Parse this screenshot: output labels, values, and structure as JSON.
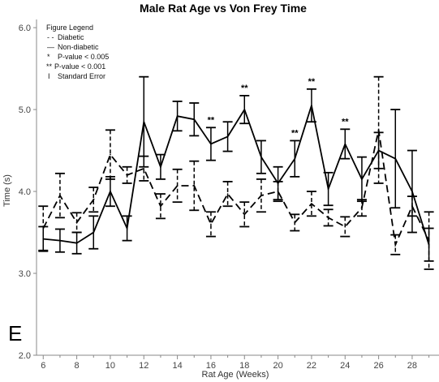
{
  "chart_data": {
    "type": "line",
    "title": "Male Rat Age vs Von Frey Time",
    "xlabel": "Rat Age (Weeks)",
    "ylabel": "Time (s)",
    "xlim": [
      5.6,
      29.6
    ],
    "ylim": [
      2.0,
      6.1
    ],
    "xticks": [
      "6",
      "8",
      "10",
      "12",
      "14",
      "16",
      "18",
      "20",
      "22",
      "24",
      "26",
      "28"
    ],
    "yticks": [
      "2.0",
      "3.0",
      "4.0",
      "5.0",
      "6.0"
    ],
    "grid": false,
    "legend_position": "top-left",
    "legend": {
      "title": "Figure Legend",
      "items": [
        {
          "symbol": "- -",
          "label": "Diabetic"
        },
        {
          "symbol": "—",
          "label": "Non-diabetic"
        },
        {
          "symbol": "*",
          "label": "P-value < 0.005"
        },
        {
          "symbol": "**",
          "label": "P-value < 0.001"
        },
        {
          "symbol": "I",
          "label": "Standard Error"
        }
      ]
    },
    "x": [
      6,
      7,
      8,
      9,
      10,
      11,
      12,
      13,
      14,
      15,
      16,
      17,
      18,
      19,
      20,
      21,
      22,
      23,
      24,
      25,
      26,
      27,
      28,
      29
    ],
    "series": [
      {
        "name": "Non-diabetic",
        "style": "solid",
        "values": [
          3.42,
          3.4,
          3.37,
          3.5,
          4.0,
          3.55,
          4.85,
          4.3,
          4.92,
          4.88,
          4.58,
          4.67,
          5.0,
          4.42,
          4.1,
          4.4,
          5.05,
          4.03,
          4.58,
          4.15,
          4.5,
          4.4,
          4.0,
          3.35
        ],
        "errors": [
          0.15,
          0.14,
          0.13,
          0.2,
          0.18,
          0.15,
          0.55,
          0.15,
          0.18,
          0.2,
          0.2,
          0.18,
          0.17,
          0.2,
          0.2,
          0.22,
          0.2,
          0.2,
          0.18,
          0.27,
          0.22,
          0.6,
          0.5,
          0.2
        ]
      },
      {
        "name": "Diabetic",
        "style": "dashed",
        "values": [
          3.55,
          3.95,
          3.62,
          3.9,
          4.45,
          4.2,
          4.28,
          3.82,
          4.07,
          4.07,
          3.6,
          3.97,
          3.72,
          3.95,
          4.0,
          3.62,
          3.85,
          3.68,
          3.57,
          3.8,
          4.75,
          3.35,
          3.82,
          3.4
        ],
        "errors": [
          0.27,
          0.27,
          0.12,
          0.15,
          0.3,
          0.1,
          0.15,
          0.15,
          0.2,
          0.3,
          0.15,
          0.15,
          0.15,
          0.2,
          0.12,
          0.1,
          0.15,
          0.1,
          0.12,
          0.1,
          0.65,
          0.12,
          0.12,
          0.35
        ]
      }
    ],
    "annotations": [
      {
        "x": 16,
        "text": "**"
      },
      {
        "x": 18,
        "text": "**"
      },
      {
        "x": 21,
        "text": "**"
      },
      {
        "x": 22,
        "text": "**"
      },
      {
        "x": 24,
        "text": "**"
      }
    ],
    "panel_label": "E",
    "colors": {
      "line": "#000000",
      "axis": "#888888",
      "text": "#333333"
    }
  }
}
